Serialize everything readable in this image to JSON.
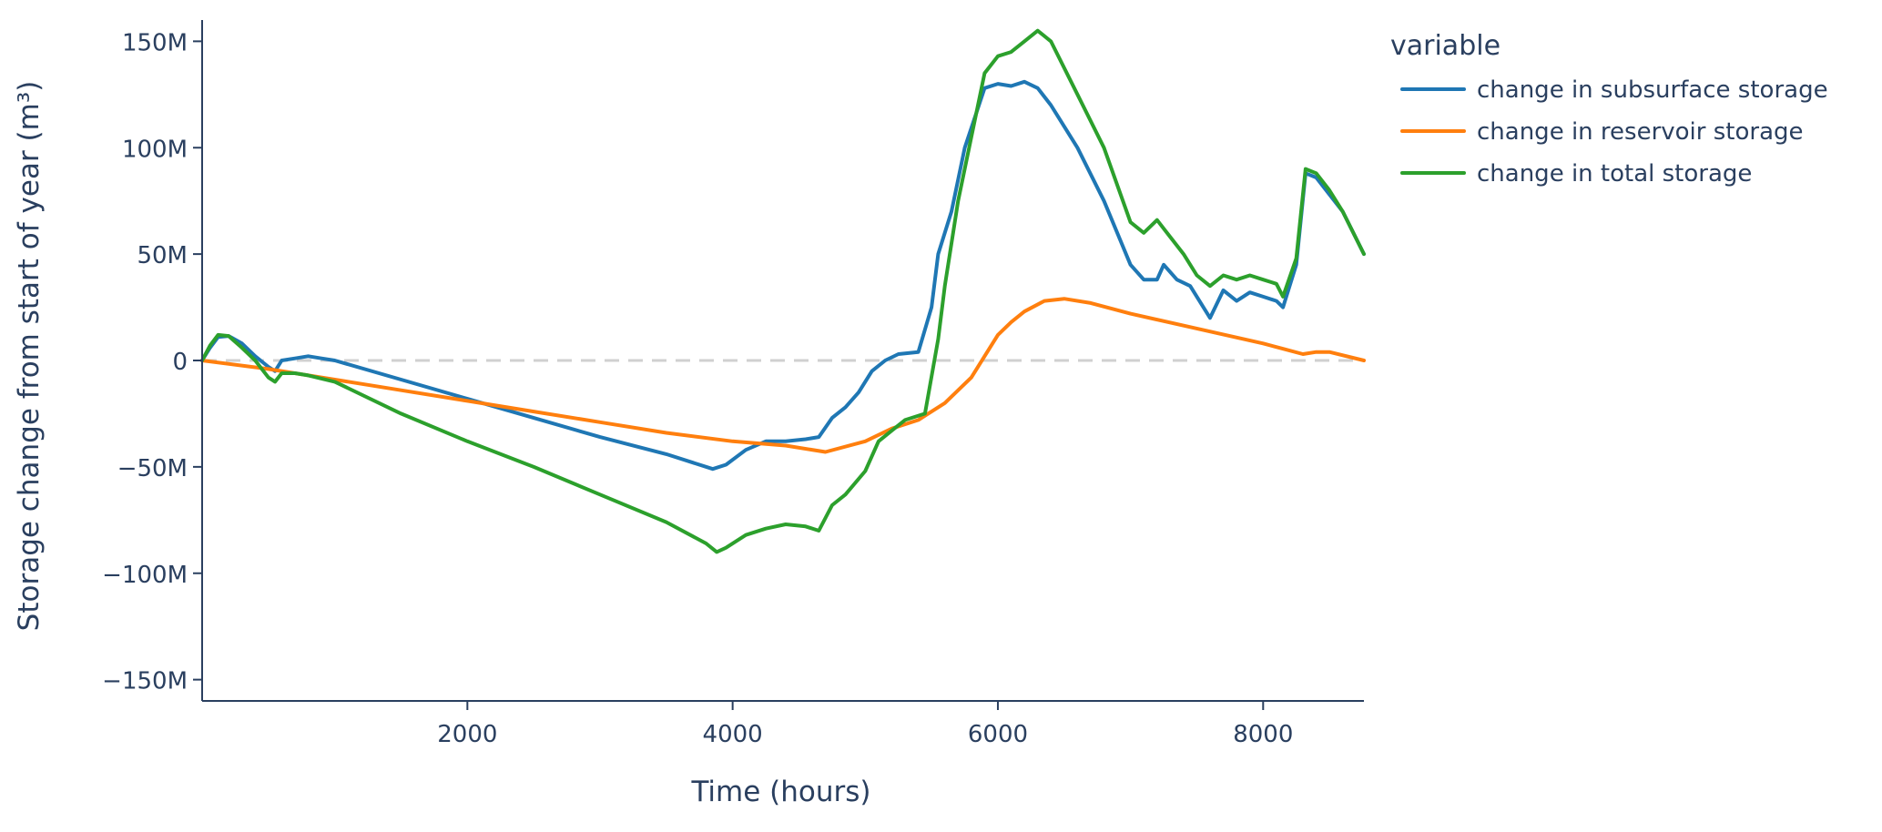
{
  "chart_data": {
    "type": "line",
    "title": "",
    "xlabel": "Time (hours)",
    "ylabel": "Storage change from start of year (m³)",
    "xlim": [
      0,
      8760
    ],
    "ylim": [
      -160000000,
      160000000
    ],
    "x_ticks": [
      2000,
      4000,
      6000,
      8000
    ],
    "x_tick_labels": [
      "2000",
      "4000",
      "6000",
      "8000"
    ],
    "y_ticks": [
      150000000,
      100000000,
      50000000,
      0,
      -50000000,
      -100000000,
      -150000000
    ],
    "y_tick_labels": [
      "150M",
      "100M",
      "50M",
      "0",
      "−50M",
      "−100M",
      "−150M"
    ],
    "zero_line": {
      "y": 0,
      "style": "dashed",
      "color": "#d0d0d0"
    },
    "grid": false,
    "legend": {
      "title": "variable",
      "position": "top-right outside"
    },
    "series": [
      {
        "name": "change in subsurface storage",
        "color": "#1f77b4",
        "points": [
          [
            0,
            0
          ],
          [
            60,
            6000000
          ],
          [
            120,
            11000000
          ],
          [
            200,
            11500000
          ],
          [
            300,
            8000000
          ],
          [
            400,
            2000000
          ],
          [
            500,
            -3000000
          ],
          [
            550,
            -5000000
          ],
          [
            600,
            0
          ],
          [
            700,
            1000000
          ],
          [
            800,
            2000000
          ],
          [
            900,
            1000000
          ],
          [
            1000,
            0
          ],
          [
            1500,
            -9000000
          ],
          [
            2000,
            -18000000
          ],
          [
            2500,
            -27000000
          ],
          [
            3000,
            -36000000
          ],
          [
            3500,
            -44000000
          ],
          [
            3700,
            -48000000
          ],
          [
            3850,
            -51000000
          ],
          [
            3950,
            -49000000
          ],
          [
            4100,
            -42000000
          ],
          [
            4250,
            -38000000
          ],
          [
            4400,
            -38000000
          ],
          [
            4550,
            -37000000
          ],
          [
            4650,
            -36000000
          ],
          [
            4750,
            -27000000
          ],
          [
            4850,
            -22000000
          ],
          [
            4950,
            -15000000
          ],
          [
            5050,
            -5000000
          ],
          [
            5150,
            0
          ],
          [
            5250,
            3000000
          ],
          [
            5400,
            4000000
          ],
          [
            5500,
            25000000
          ],
          [
            5550,
            50000000
          ],
          [
            5650,
            70000000
          ],
          [
            5750,
            100000000
          ],
          [
            5900,
            128000000
          ],
          [
            6000,
            130000000
          ],
          [
            6100,
            129000000
          ],
          [
            6200,
            131000000
          ],
          [
            6300,
            128000000
          ],
          [
            6400,
            120000000
          ],
          [
            6600,
            100000000
          ],
          [
            6800,
            75000000
          ],
          [
            7000,
            45000000
          ],
          [
            7100,
            38000000
          ],
          [
            7200,
            38000000
          ],
          [
            7250,
            45000000
          ],
          [
            7350,
            38000000
          ],
          [
            7450,
            35000000
          ],
          [
            7550,
            25000000
          ],
          [
            7600,
            20000000
          ],
          [
            7700,
            33000000
          ],
          [
            7800,
            28000000
          ],
          [
            7900,
            32000000
          ],
          [
            8000,
            30000000
          ],
          [
            8100,
            28000000
          ],
          [
            8150,
            25000000
          ],
          [
            8250,
            45000000
          ],
          [
            8320,
            88000000
          ],
          [
            8400,
            86000000
          ],
          [
            8500,
            78000000
          ],
          [
            8600,
            70000000
          ],
          [
            8760,
            50000000
          ]
        ]
      },
      {
        "name": "change in reservoir storage",
        "color": "#ff7f0e",
        "points": [
          [
            0,
            0
          ],
          [
            500,
            -4000000
          ],
          [
            1000,
            -9000000
          ],
          [
            1500,
            -14000000
          ],
          [
            2000,
            -19000000
          ],
          [
            2500,
            -24000000
          ],
          [
            3000,
            -29000000
          ],
          [
            3500,
            -34000000
          ],
          [
            4000,
            -38000000
          ],
          [
            4400,
            -40000000
          ],
          [
            4700,
            -43000000
          ],
          [
            5000,
            -38000000
          ],
          [
            5200,
            -32000000
          ],
          [
            5400,
            -28000000
          ],
          [
            5600,
            -20000000
          ],
          [
            5800,
            -8000000
          ],
          [
            6000,
            12000000
          ],
          [
            6100,
            18000000
          ],
          [
            6200,
            23000000
          ],
          [
            6350,
            28000000
          ],
          [
            6500,
            29000000
          ],
          [
            6700,
            27000000
          ],
          [
            7000,
            22000000
          ],
          [
            7500,
            15000000
          ],
          [
            8000,
            8000000
          ],
          [
            8300,
            3000000
          ],
          [
            8400,
            4000000
          ],
          [
            8500,
            4000000
          ],
          [
            8760,
            0
          ]
        ]
      },
      {
        "name": "change in total storage",
        "color": "#2ca02c",
        "points": [
          [
            0,
            0
          ],
          [
            60,
            7000000
          ],
          [
            120,
            12000000
          ],
          [
            200,
            11500000
          ],
          [
            300,
            6000000
          ],
          [
            400,
            0
          ],
          [
            500,
            -8000000
          ],
          [
            550,
            -10000000
          ],
          [
            600,
            -6000000
          ],
          [
            700,
            -6000000
          ],
          [
            800,
            -7000000
          ],
          [
            1000,
            -10000000
          ],
          [
            1500,
            -25000000
          ],
          [
            2000,
            -38000000
          ],
          [
            2500,
            -50000000
          ],
          [
            3000,
            -63000000
          ],
          [
            3500,
            -76000000
          ],
          [
            3800,
            -86000000
          ],
          [
            3880,
            -90000000
          ],
          [
            3950,
            -88000000
          ],
          [
            4100,
            -82000000
          ],
          [
            4250,
            -79000000
          ],
          [
            4400,
            -77000000
          ],
          [
            4550,
            -78000000
          ],
          [
            4650,
            -80000000
          ],
          [
            4750,
            -68000000
          ],
          [
            4850,
            -63000000
          ],
          [
            5000,
            -52000000
          ],
          [
            5100,
            -38000000
          ],
          [
            5200,
            -33000000
          ],
          [
            5300,
            -28000000
          ],
          [
            5450,
            -25000000
          ],
          [
            5550,
            10000000
          ],
          [
            5600,
            35000000
          ],
          [
            5700,
            75000000
          ],
          [
            5800,
            105000000
          ],
          [
            5900,
            135000000
          ],
          [
            6000,
            143000000
          ],
          [
            6100,
            145000000
          ],
          [
            6200,
            150000000
          ],
          [
            6300,
            155000000
          ],
          [
            6400,
            150000000
          ],
          [
            6600,
            125000000
          ],
          [
            6800,
            100000000
          ],
          [
            7000,
            65000000
          ],
          [
            7100,
            60000000
          ],
          [
            7200,
            66000000
          ],
          [
            7300,
            58000000
          ],
          [
            7400,
            50000000
          ],
          [
            7500,
            40000000
          ],
          [
            7600,
            35000000
          ],
          [
            7700,
            40000000
          ],
          [
            7800,
            38000000
          ],
          [
            7900,
            40000000
          ],
          [
            8000,
            38000000
          ],
          [
            8100,
            36000000
          ],
          [
            8150,
            30000000
          ],
          [
            8250,
            48000000
          ],
          [
            8320,
            90000000
          ],
          [
            8400,
            88000000
          ],
          [
            8500,
            80000000
          ],
          [
            8600,
            70000000
          ],
          [
            8760,
            50000000
          ]
        ]
      }
    ]
  }
}
